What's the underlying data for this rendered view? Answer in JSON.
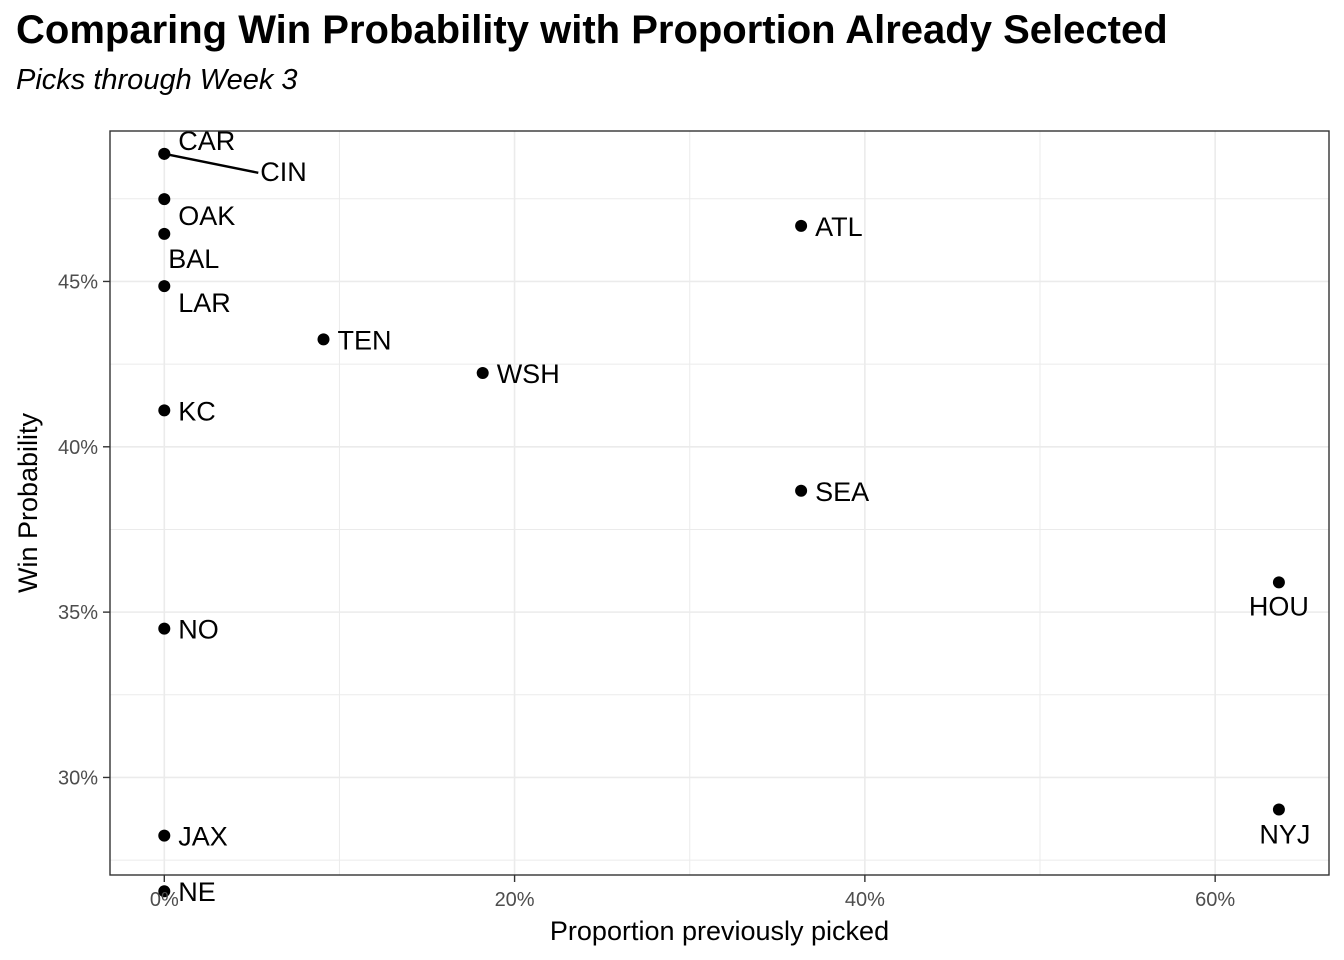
{
  "chart_data": {
    "type": "scatter",
    "title": "Comparing Win Probability with Proportion Already Selected",
    "subtitle": "Picks through Week 3",
    "xlabel": "Proportion previously picked",
    "ylabel": "Win Probability",
    "xlim": [
      -0.031,
      0.665
    ],
    "ylim": [
      0.2705,
      0.4955
    ],
    "x_ticks": [
      0,
      0.2,
      0.4,
      0.6
    ],
    "x_tick_labels": [
      "0%",
      "20%",
      "40%",
      "60%"
    ],
    "y_ticks": [
      0.3,
      0.35,
      0.4,
      0.45
    ],
    "y_tick_labels": [
      "30%",
      "35%",
      "40%",
      "45%"
    ],
    "grid": true,
    "point_color": "#000000",
    "points": [
      {
        "label": "CAR",
        "x": 0.0,
        "y": 0.4886
      },
      {
        "label": "CIN",
        "x": 0.0,
        "y": 0.4886
      },
      {
        "label": "OAK",
        "x": 0.0,
        "y": 0.4749
      },
      {
        "label": "BAL",
        "x": 0.0,
        "y": 0.4644
      },
      {
        "label": "LAR",
        "x": 0.0,
        "y": 0.4486
      },
      {
        "label": "KC",
        "x": 0.0,
        "y": 0.411
      },
      {
        "label": "NO",
        "x": 0.0,
        "y": 0.345
      },
      {
        "label": "JAX",
        "x": 0.0,
        "y": 0.2824
      },
      {
        "label": "NE",
        "x": 0.0,
        "y": 0.2656
      },
      {
        "label": "TEN",
        "x": 0.0909,
        "y": 0.4325
      },
      {
        "label": "WSH",
        "x": 0.1818,
        "y": 0.4223
      },
      {
        "label": "ATL",
        "x": 0.3636,
        "y": 0.4668
      },
      {
        "label": "SEA",
        "x": 0.3636,
        "y": 0.3867
      },
      {
        "label": "HOU",
        "x": 0.6364,
        "y": 0.359
      },
      {
        "label": "NYJ",
        "x": 0.6364,
        "y": 0.2903
      }
    ]
  }
}
